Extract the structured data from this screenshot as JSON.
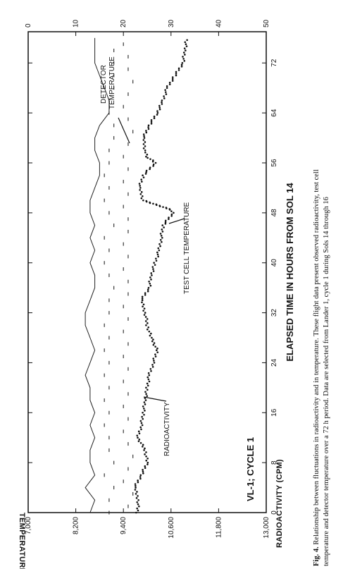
{
  "chart_data": {
    "type": "line",
    "panel_label": "VL-1; CYCLE 1",
    "xlabel": "ELAPSED TIME IN HOURS FROM SOL 14",
    "ylabel_left": "RADIOACTIVITY (CPM)",
    "ylabel_right": "TEMPERATURE °C",
    "x_ticks": [
      0,
      8,
      16,
      24,
      32,
      40,
      48,
      56,
      64,
      72
    ],
    "radio_ticks": [
      "7,000",
      "8,200",
      "9,400",
      "10,600",
      "11,800",
      "13,000"
    ],
    "temp_ticks": [
      "0",
      "10",
      "20",
      "30",
      "40",
      "50"
    ],
    "xlim": [
      0,
      77
    ],
    "radio_lim": [
      7000,
      13000
    ],
    "temp_lim": [
      0,
      50
    ],
    "annotations": {
      "radioactivity": "RADIOACTIVITY",
      "detector": [
        "DETECTOR",
        "TEMPERATURE"
      ],
      "test_cell": "TEST CELL TEMPERATURE"
    },
    "series": [
      {
        "name": "RADIOACTIVITY",
        "axis": "radio",
        "style": "dots",
        "points": [
          [
            0,
            9750
          ],
          [
            2,
            9780
          ],
          [
            4,
            9680
          ],
          [
            6,
            9850
          ],
          [
            8,
            10000
          ],
          [
            10,
            9950
          ],
          [
            12,
            9760
          ],
          [
            14,
            9850
          ],
          [
            16,
            9900
          ],
          [
            18,
            9950
          ],
          [
            20,
            10000
          ],
          [
            22,
            10050
          ],
          [
            24,
            10150
          ],
          [
            26,
            10250
          ],
          [
            28,
            10100
          ],
          [
            30,
            10000
          ],
          [
            32,
            9950
          ],
          [
            34,
            9850
          ],
          [
            36,
            10050
          ],
          [
            38,
            10100
          ],
          [
            40,
            10200
          ],
          [
            42,
            10300
          ],
          [
            44,
            10350
          ],
          [
            46,
            10400
          ],
          [
            48,
            10650
          ],
          [
            48.5,
            10600
          ],
          [
            50,
            9900
          ],
          [
            52,
            9800
          ],
          [
            54,
            9900
          ],
          [
            56,
            10200
          ],
          [
            57,
            10000
          ],
          [
            58,
            9950
          ],
          [
            60,
            9900
          ],
          [
            62,
            10050
          ],
          [
            64,
            10250
          ],
          [
            66,
            10400
          ],
          [
            68,
            10500
          ],
          [
            70,
            10700
          ],
          [
            72,
            10900
          ],
          [
            74,
            10950
          ],
          [
            76,
            11000
          ]
        ]
      },
      {
        "name": "TEST CELL TEMPERATURE",
        "axis": "temp",
        "style": "line",
        "points": [
          [
            0,
            13
          ],
          [
            2,
            14
          ],
          [
            4,
            12
          ],
          [
            6,
            14
          ],
          [
            8,
            13
          ],
          [
            10,
            13
          ],
          [
            12,
            14
          ],
          [
            14,
            13
          ],
          [
            16,
            14
          ],
          [
            18,
            13
          ],
          [
            20,
            13
          ],
          [
            22,
            12
          ],
          [
            24,
            13
          ],
          [
            26,
            14
          ],
          [
            28,
            13
          ],
          [
            30,
            12
          ],
          [
            32,
            12
          ],
          [
            34,
            13
          ],
          [
            36,
            14
          ],
          [
            38,
            14
          ],
          [
            40,
            13
          ],
          [
            42,
            14
          ],
          [
            44,
            13
          ],
          [
            46,
            14
          ],
          [
            48,
            13
          ],
          [
            50,
            13
          ],
          [
            52,
            14
          ],
          [
            54,
            15
          ],
          [
            56,
            15
          ],
          [
            58,
            14
          ],
          [
            60,
            14
          ],
          [
            62,
            15
          ],
          [
            64,
            17
          ],
          [
            66,
            17
          ],
          [
            68,
            16
          ],
          [
            70,
            15
          ],
          [
            72,
            14
          ],
          [
            74,
            14
          ],
          [
            76,
            14
          ]
        ]
      },
      {
        "name": "DETECTOR TEMPERATURE",
        "axis": "temp",
        "style": "dashes",
        "points": [
          [
            0,
            17
          ],
          [
            1,
            21
          ],
          [
            2,
            17
          ],
          [
            3,
            22
          ],
          [
            4,
            18
          ],
          [
            5,
            20
          ],
          [
            6,
            16
          ],
          [
            7,
            21
          ],
          [
            8,
            18
          ],
          [
            9,
            22
          ],
          [
            10,
            17
          ],
          [
            11,
            21
          ],
          [
            12,
            17
          ],
          [
            13,
            20
          ],
          [
            14,
            16
          ],
          [
            15,
            21
          ],
          [
            16,
            17
          ],
          [
            17,
            20
          ],
          [
            18,
            16
          ],
          [
            19,
            21
          ],
          [
            20,
            17
          ],
          [
            21,
            20
          ],
          [
            22,
            16
          ],
          [
            23,
            21
          ],
          [
            24,
            17
          ],
          [
            25,
            20
          ],
          [
            26,
            16
          ],
          [
            27,
            21
          ],
          [
            28,
            17
          ],
          [
            29,
            20
          ],
          [
            30,
            16
          ],
          [
            31,
            21
          ],
          [
            32,
            17
          ],
          [
            33,
            20
          ],
          [
            34,
            17
          ],
          [
            35,
            21
          ],
          [
            36,
            18
          ],
          [
            37,
            21
          ],
          [
            38,
            17
          ],
          [
            39,
            20
          ],
          [
            40,
            16
          ],
          [
            41,
            21
          ],
          [
            42,
            17
          ],
          [
            43,
            20
          ],
          [
            44,
            16
          ],
          [
            45,
            21
          ],
          [
            46,
            18
          ],
          [
            47,
            21
          ],
          [
            48,
            17
          ],
          [
            49,
            20
          ],
          [
            50,
            16
          ],
          [
            51,
            21
          ],
          [
            52,
            17
          ],
          [
            53,
            20
          ],
          [
            54,
            16
          ],
          [
            55,
            21
          ],
          [
            56,
            17
          ],
          [
            57,
            20
          ],
          [
            58,
            17
          ],
          [
            59,
            21
          ],
          [
            60,
            18
          ],
          [
            61,
            22
          ],
          [
            62,
            18
          ],
          [
            63,
            21
          ],
          [
            64,
            17
          ],
          [
            65,
            20
          ],
          [
            66,
            17
          ],
          [
            67,
            21
          ],
          [
            68,
            18
          ],
          [
            69,
            22
          ],
          [
            70,
            18
          ],
          [
            71,
            21
          ],
          [
            72,
            18
          ],
          [
            73,
            21
          ],
          [
            74,
            18
          ],
          [
            75,
            20
          ]
        ]
      }
    ]
  },
  "caption": {
    "label": "Fig. 4.",
    "lines": [
      "Relationship between fluctuations in radioactivity and in temperature.  These flight data present observed radioactivity, test cell",
      "temperature and detector temperature over a 72 h period.  Data are selected from Lander 1, cycle 1 during Sols 14 through 16"
    ]
  }
}
